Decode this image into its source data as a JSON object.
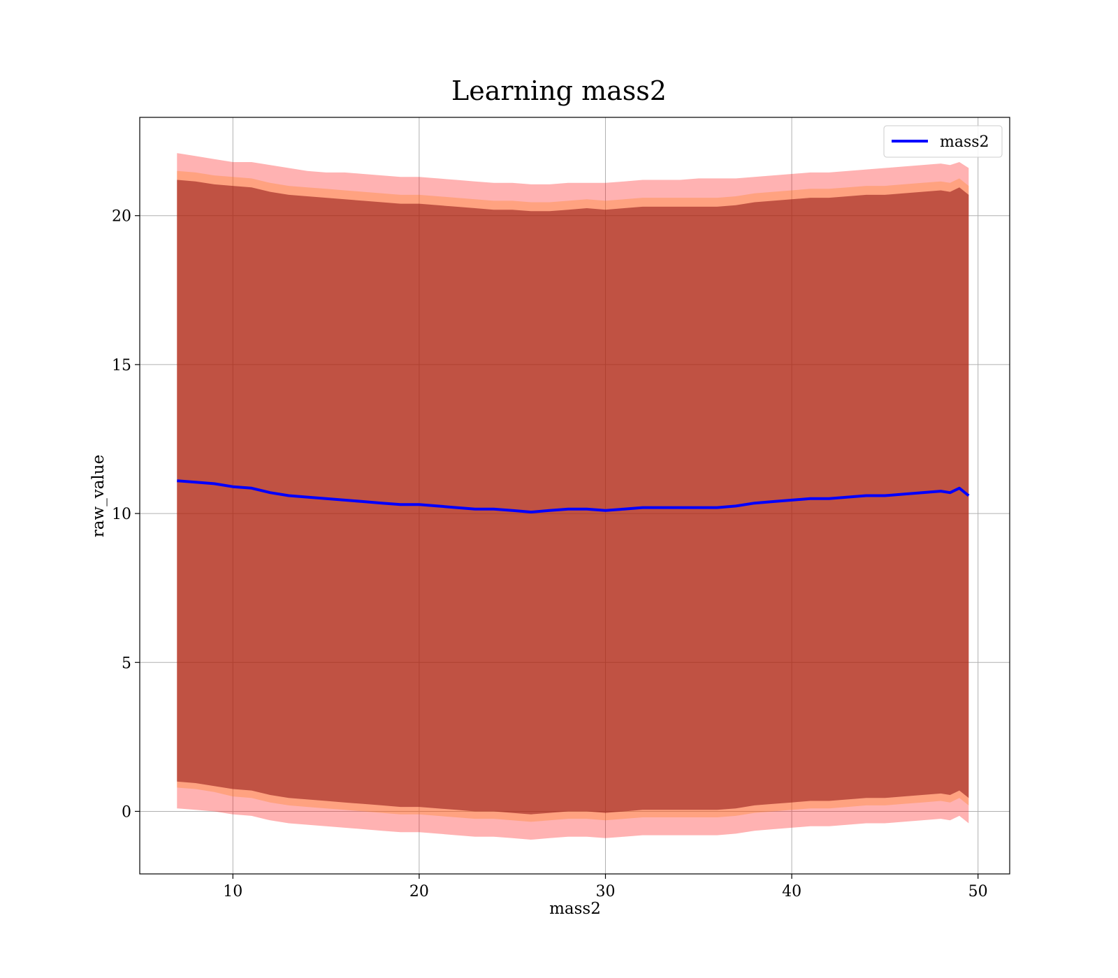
{
  "chart_data": {
    "type": "area",
    "title": "Learning mass2",
    "xlabel": "mass2",
    "ylabel": "raw_value",
    "xlim": [
      5,
      51.7
    ],
    "ylim": [
      -2.1,
      23.3
    ],
    "xticks": [
      10,
      20,
      30,
      40,
      50
    ],
    "yticks": [
      0,
      5,
      10,
      15,
      20
    ],
    "grid": true,
    "legend": {
      "placement": "top-right",
      "entries": [
        "mass2"
      ]
    },
    "x": [
      7.0,
      8.0,
      9.0,
      10.0,
      11.0,
      12.0,
      13.0,
      14.0,
      15.0,
      16.0,
      17.0,
      18.0,
      19.0,
      20.0,
      21.0,
      22.0,
      23.0,
      24.0,
      25.0,
      26.0,
      27.0,
      28.0,
      29.0,
      30.0,
      31.0,
      32.0,
      33.0,
      34.0,
      35.0,
      36.0,
      37.0,
      38.0,
      39.0,
      40.0,
      41.0,
      42.0,
      43.0,
      44.0,
      45.0,
      46.0,
      47.0,
      48.0,
      48.5,
      49.0,
      49.5
    ],
    "series": [
      {
        "name": "mass2",
        "color": "#0000ff",
        "values": [
          11.1,
          11.05,
          11.0,
          10.9,
          10.85,
          10.7,
          10.6,
          10.55,
          10.5,
          10.45,
          10.4,
          10.35,
          10.3,
          10.3,
          10.25,
          10.2,
          10.15,
          10.15,
          10.1,
          10.05,
          10.1,
          10.15,
          10.15,
          10.1,
          10.15,
          10.2,
          10.2,
          10.2,
          10.2,
          10.2,
          10.25,
          10.35,
          10.4,
          10.45,
          10.5,
          10.5,
          10.55,
          10.6,
          10.6,
          10.65,
          10.7,
          10.75,
          10.7,
          10.85,
          10.6
        ]
      }
    ],
    "bands": [
      {
        "color": "#ff0000",
        "opacity": 0.3,
        "upper": [
          22.1,
          22.0,
          21.9,
          21.8,
          21.8,
          21.7,
          21.6,
          21.5,
          21.45,
          21.45,
          21.4,
          21.35,
          21.3,
          21.3,
          21.25,
          21.2,
          21.15,
          21.1,
          21.1,
          21.05,
          21.05,
          21.1,
          21.1,
          21.1,
          21.15,
          21.2,
          21.2,
          21.2,
          21.25,
          21.25,
          21.25,
          21.3,
          21.35,
          21.4,
          21.45,
          21.45,
          21.5,
          21.55,
          21.6,
          21.65,
          21.7,
          21.75,
          21.7,
          21.8,
          21.6
        ],
        "lower": [
          0.1,
          0.05,
          0.0,
          -0.1,
          -0.15,
          -0.3,
          -0.4,
          -0.45,
          -0.5,
          -0.55,
          -0.6,
          -0.65,
          -0.7,
          -0.7,
          -0.75,
          -0.8,
          -0.85,
          -0.85,
          -0.9,
          -0.95,
          -0.9,
          -0.85,
          -0.85,
          -0.9,
          -0.85,
          -0.8,
          -0.8,
          -0.8,
          -0.8,
          -0.8,
          -0.75,
          -0.65,
          -0.6,
          -0.55,
          -0.5,
          -0.5,
          -0.45,
          -0.4,
          -0.4,
          -0.35,
          -0.3,
          -0.25,
          -0.3,
          -0.15,
          -0.4
        ]
      },
      {
        "color": "#ff7f0e",
        "opacity": 0.3,
        "upper": [
          21.5,
          21.45,
          21.35,
          21.3,
          21.25,
          21.1,
          21.0,
          20.95,
          20.9,
          20.85,
          20.8,
          20.75,
          20.7,
          20.7,
          20.65,
          20.6,
          20.55,
          20.5,
          20.5,
          20.45,
          20.45,
          20.5,
          20.55,
          20.5,
          20.55,
          20.6,
          20.6,
          20.6,
          20.6,
          20.6,
          20.65,
          20.75,
          20.8,
          20.85,
          20.9,
          20.9,
          20.95,
          21.0,
          21.0,
          21.05,
          21.1,
          21.15,
          21.1,
          21.25,
          21.0
        ],
        "lower": [
          0.8,
          0.75,
          0.65,
          0.5,
          0.45,
          0.3,
          0.2,
          0.15,
          0.1,
          0.05,
          0.0,
          -0.05,
          -0.1,
          -0.1,
          -0.15,
          -0.2,
          -0.25,
          -0.25,
          -0.3,
          -0.35,
          -0.3,
          -0.25,
          -0.25,
          -0.3,
          -0.25,
          -0.2,
          -0.2,
          -0.2,
          -0.2,
          -0.2,
          -0.15,
          -0.05,
          0.0,
          0.05,
          0.1,
          0.1,
          0.15,
          0.2,
          0.2,
          0.25,
          0.3,
          0.35,
          0.3,
          0.45,
          0.2
        ]
      },
      {
        "color": "#8c1010",
        "opacity": 0.55,
        "upper": [
          21.2,
          21.15,
          21.05,
          21.0,
          20.95,
          20.8,
          20.7,
          20.65,
          20.6,
          20.55,
          20.5,
          20.45,
          20.4,
          20.4,
          20.35,
          20.3,
          20.25,
          20.2,
          20.2,
          20.15,
          20.15,
          20.2,
          20.25,
          20.2,
          20.25,
          20.3,
          20.3,
          20.3,
          20.3,
          20.3,
          20.35,
          20.45,
          20.5,
          20.55,
          20.6,
          20.6,
          20.65,
          20.7,
          20.7,
          20.75,
          20.8,
          20.85,
          20.8,
          20.95,
          20.7
        ],
        "lower": [
          1.0,
          0.95,
          0.85,
          0.75,
          0.7,
          0.55,
          0.45,
          0.4,
          0.35,
          0.3,
          0.25,
          0.2,
          0.15,
          0.15,
          0.1,
          0.05,
          0.0,
          0.0,
          -0.05,
          -0.1,
          -0.05,
          0.0,
          0.0,
          -0.05,
          0.0,
          0.05,
          0.05,
          0.05,
          0.05,
          0.05,
          0.1,
          0.2,
          0.25,
          0.3,
          0.35,
          0.35,
          0.4,
          0.45,
          0.45,
          0.5,
          0.55,
          0.6,
          0.55,
          0.7,
          0.45
        ]
      }
    ]
  }
}
